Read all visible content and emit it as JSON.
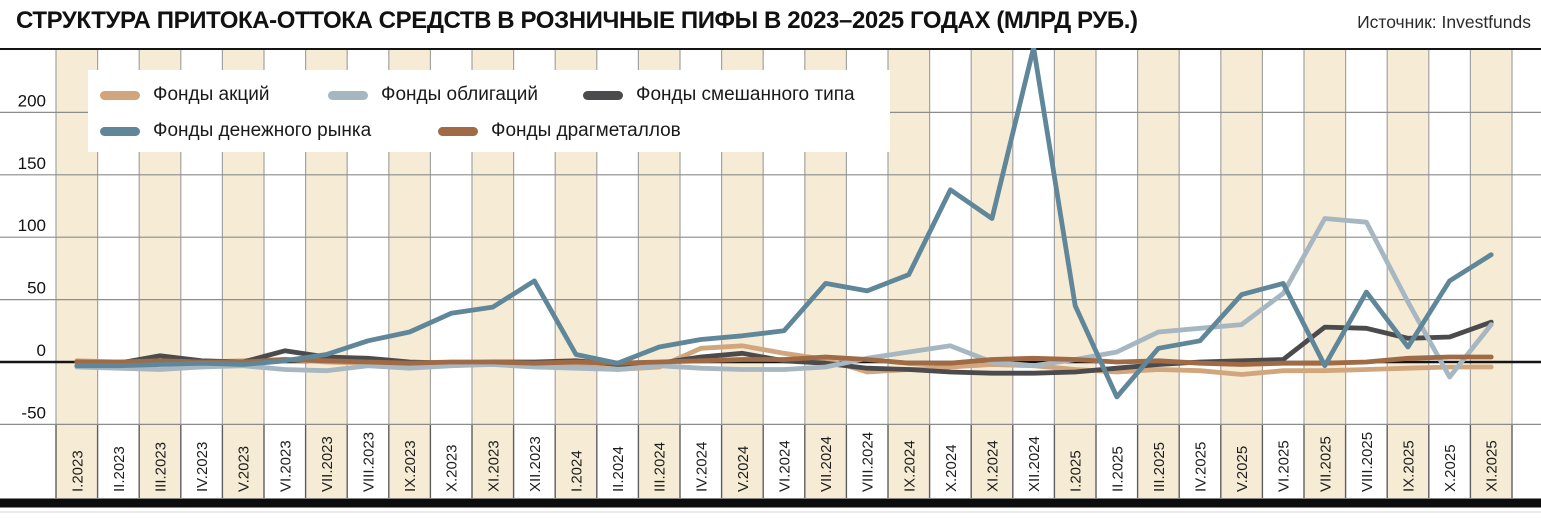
{
  "header": {
    "title": "СТРУКТУРА ПРИТОКА-ОТТОКА СРЕДСТВ В РОЗНИЧНЫЕ ПИФЫ В 2023–2025 ГОДАХ (МЛРД РУБ.)",
    "source": "Источник: Investfunds"
  },
  "chart_data": {
    "type": "line",
    "unit": "млрд руб.",
    "x_labels": [
      "I.2023",
      "II.2023",
      "III.2023",
      "IV.2023",
      "V.2023",
      "VI.2023",
      "VII.2023",
      "VIII.2023",
      "IX.2023",
      "X.2023",
      "XI.2023",
      "XII.2023",
      "I.2024",
      "II.2024",
      "III.2024",
      "IV.2024",
      "V.2024",
      "VI.2024",
      "VII.2024",
      "VIII.2024",
      "IX.2024",
      "X.2024",
      "XI.2024",
      "XII.2024",
      "I.2025",
      "II.2025",
      "III.2025",
      "IV.2025",
      "V.2025",
      "VI.2025",
      "VII.2025",
      "VIII.2025",
      "IX.2025",
      "X.2025",
      "XI.2025"
    ],
    "y_ticks": [
      200,
      150,
      100,
      50,
      0,
      -50
    ],
    "ylim": [
      -50,
      252
    ],
    "grid": true,
    "legend_position": "top-left",
    "band_color": "#f6ecd5",
    "grid_color": "#9b9b9b",
    "zero_line_color": "#141414",
    "series": [
      {
        "name": "Фонды акций",
        "color": "#d2a67c",
        "values": [
          1,
          0,
          0,
          0,
          1,
          2,
          0,
          -1,
          -2,
          -2,
          -2,
          -2,
          -3,
          -6,
          -4,
          11,
          13,
          7,
          2,
          -8,
          -6,
          -4,
          -2,
          -3,
          -6,
          -8,
          -6,
          -7,
          -10,
          -7,
          -7,
          -6,
          -5,
          -4,
          -4
        ]
      },
      {
        "name": "Фонды облигаций",
        "color": "#a7b7c1",
        "values": [
          -4,
          -5,
          -6,
          -4,
          -3,
          -6,
          -7,
          -3,
          -5,
          -3,
          -2,
          -4,
          -5,
          -6,
          -3,
          -5,
          -6,
          -6,
          -4,
          3,
          8,
          13,
          0,
          -3,
          2,
          8,
          24,
          27,
          30,
          55,
          115,
          112,
          48,
          -12,
          30
        ]
      },
      {
        "name": "Фонды смешанного типа",
        "color": "#4b4b4d",
        "values": [
          0,
          -1,
          5,
          1,
          0,
          9,
          4,
          3,
          0,
          -1,
          0,
          0,
          1,
          -2,
          -1,
          4,
          7,
          1,
          -1,
          -5,
          -6,
          -8,
          -9,
          -9,
          -8,
          -5,
          -2,
          0,
          1,
          2,
          28,
          27,
          19,
          20,
          32
        ]
      },
      {
        "name": "Фонды денежного рынка",
        "color": "#5f8799",
        "values": [
          -3,
          -3,
          -2,
          -1,
          -2,
          1,
          6,
          17,
          24,
          39,
          44,
          65,
          6,
          -1,
          12,
          18,
          21,
          25,
          63,
          57,
          70,
          138,
          115,
          252,
          45,
          -28,
          11,
          17,
          54,
          63,
          -3,
          56,
          12,
          65,
          86
        ]
      },
      {
        "name": "Фонды драгметаллов",
        "color": "#a06a45",
        "values": [
          0,
          0,
          1,
          0,
          0,
          2,
          1,
          0,
          -1,
          0,
          0,
          -1,
          0,
          -1,
          0,
          1,
          2,
          2,
          4,
          2,
          -1,
          -1,
          2,
          3,
          2,
          0,
          1,
          -1,
          -2,
          -1,
          -1,
          0,
          3,
          4,
          4
        ]
      }
    ]
  }
}
